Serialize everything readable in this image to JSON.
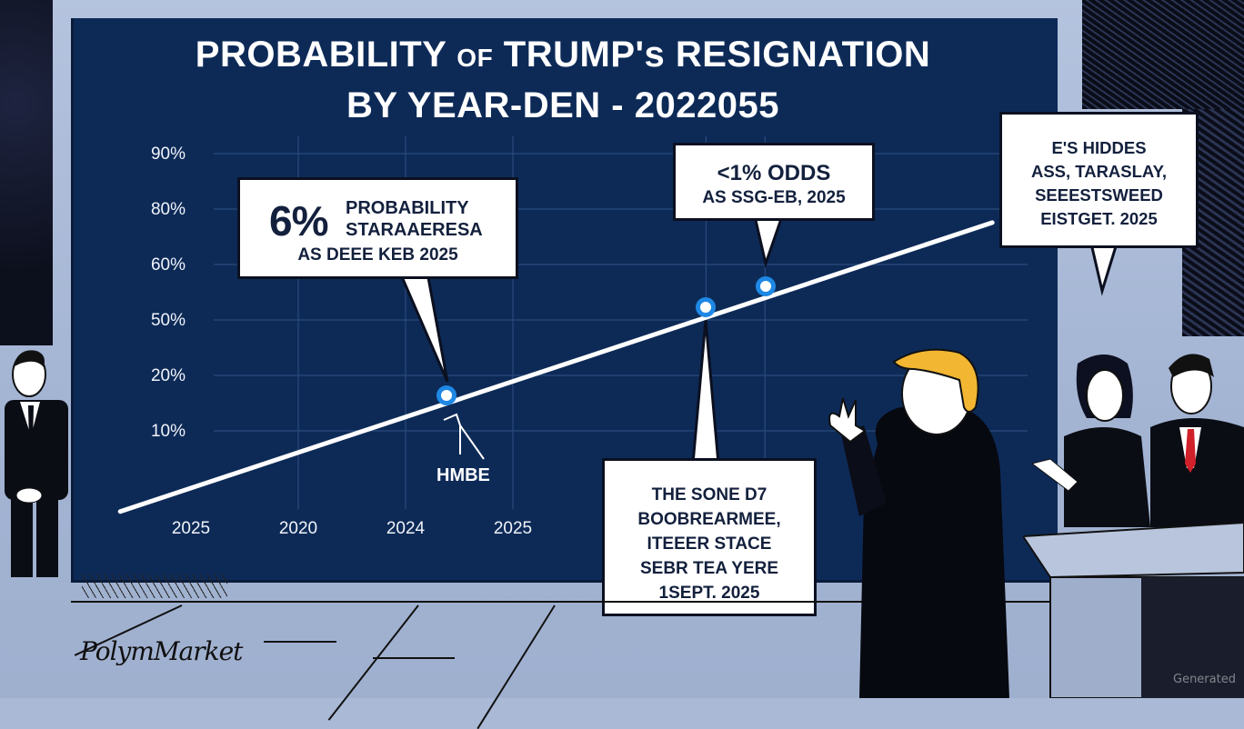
{
  "chart_data": {
    "type": "line",
    "title": "PROBABILITY OF TRUMP's RESIGNATION BY YEAR-DEN - 2022055",
    "title_lines": [
      {
        "parts": [
          {
            "text": "PROBABILITY ",
            "small": false
          },
          {
            "text": "OF",
            "small": true
          },
          {
            "text": " TRUMP's RESIGNATION",
            "small": false
          }
        ]
      },
      {
        "parts": [
          {
            "text": "BY YEAR-DEN - 2022055",
            "small": false
          }
        ]
      }
    ],
    "xlabel": "",
    "ylabel": "",
    "x_tick_labels": [
      "2025",
      "2020",
      "2024",
      "2025"
    ],
    "y_tick_labels": [
      "10%",
      "20%",
      "50%",
      "60%",
      "80%",
      "90%"
    ],
    "y_tick_positions_index": [
      0,
      1,
      2,
      3,
      4,
      5
    ],
    "grid": true,
    "series": [
      {
        "name": "Resignation probability",
        "color": "#ffffff",
        "line_start_index": [
          -2.1,
          -0.7
        ],
        "line_end_index": [
          7.4,
          4.1
        ]
      }
    ],
    "markers": [
      {
        "name": "marker-1",
        "x_index": 2.55,
        "y_index": 0.72,
        "color": "#1e88e5"
      },
      {
        "name": "marker-2",
        "x_index": 4.8,
        "y_index": 2.37,
        "color": "#1e88e5"
      },
      {
        "name": "marker-3",
        "x_index": 5.35,
        "y_index": 2.72,
        "color": "#1e88e5"
      }
    ],
    "annotations": [
      "6% PROBABILITY STARAAERESA AS DEEE KEB 2025",
      "<1% ODDS AS SSG-EB, 2025",
      "E'S HIDDES ASS, TARASLAY, SEEESTSWEED EISTGET. 2025",
      "THE SONE D7 BOOBREARMEE, ITEEER STACE SEBR TEA YERE 1SEPT. 2025",
      "HMBE"
    ]
  },
  "callouts": {
    "c1": {
      "big": "6%",
      "line1": "PROBABILITY",
      "line2": "STARAAERESA",
      "line3": "AS DEEE KEB 2025"
    },
    "c2": {
      "line1": "<1% ODDS",
      "line2": "AS SSG-EB, 2025"
    },
    "c3": {
      "lines": [
        "E'S HIDDES",
        "ASS, TARASLAY,",
        "SEEESTSWEED",
        "EISTGET. 2025"
      ]
    },
    "c4": {
      "lines": [
        "THE SONE D7",
        "BOOBREARMEE,",
        "ITEEER STACE",
        "SEBR TEA YERE",
        "1SEPT. 2025"
      ]
    }
  },
  "annotation_label": "HMBE",
  "logo_text": "PolymMarket",
  "watermark": "Generated",
  "colors": {
    "board": "#0d2a57",
    "marker": "#1e88e5",
    "line": "#ffffff",
    "hair": "#f2b632",
    "tie": "#d0202a"
  }
}
